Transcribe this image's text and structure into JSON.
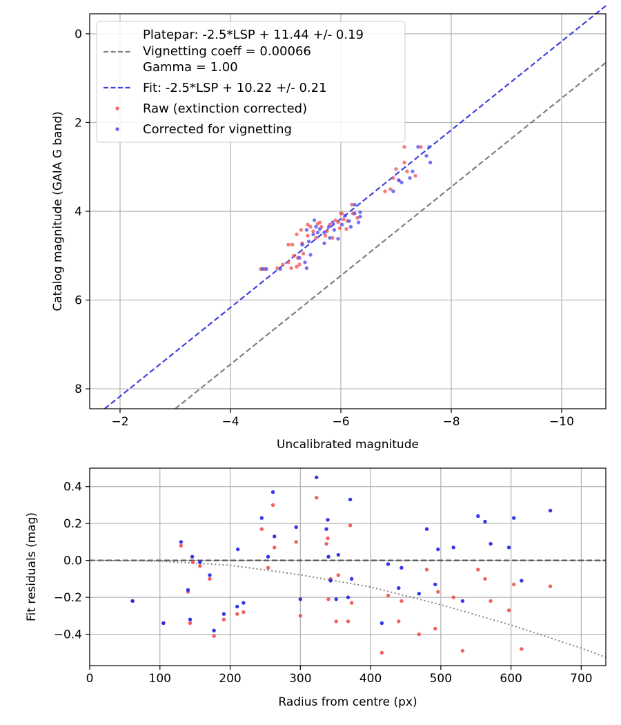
{
  "chart_data": [
    {
      "type": "scatter",
      "xlabel": "Uncalibrated magnitude",
      "ylabel": "Catalog magnitude (GAIA G band)",
      "xlim": [
        -1.45,
        -10.8
      ],
      "ylim": [
        8.45,
        -0.45
      ],
      "x_inverted": true,
      "y_inverted": true,
      "xticks": [
        -2,
        -4,
        -6,
        -8,
        -10
      ],
      "xtick_labels": [
        "−2",
        "−4",
        "−6",
        "−8",
        "−10"
      ],
      "yticks": [
        0,
        2,
        4,
        6,
        8
      ],
      "ytick_labels": [
        "0",
        "2",
        "4",
        "6",
        "8"
      ],
      "grid": true,
      "legend": {
        "placement": "upper-left",
        "entries": [
          {
            "label": "Platepar: -2.5*LSP + 11.44 +/- 0.19",
            "style": "none"
          },
          {
            "label": "Vignetting coeff = 0.00066",
            "style": "dashed",
            "color": "#7f7f7f"
          },
          {
            "label": "Gamma = 1.00",
            "style": "none"
          },
          {
            "label": "Fit: -2.5*LSP + 10.22 +/- 0.21",
            "style": "dashed",
            "color": "#4040e0"
          },
          {
            "label": "Raw (extinction corrected)",
            "style": "dot",
            "color": "#f05050"
          },
          {
            "label": "Corrected for vignetting",
            "style": "dot",
            "color": "#4848f0"
          }
        ]
      },
      "lines": [
        {
          "name": "Platepar",
          "color": "#7f7f7f",
          "dash": true,
          "points": [
            [
              -3.0,
              8.45
            ],
            [
              -10.8,
              0.65
            ]
          ]
        },
        {
          "name": "Fit",
          "color": "#4040e0",
          "dash": true,
          "points": [
            [
              -1.72,
              8.45
            ],
            [
              -10.8,
              -0.63
            ]
          ]
        }
      ],
      "series": [
        {
          "name": "Raw (extinction corrected)",
          "color": "#f05050",
          "points": [
            [
              -4.55,
              5.3
            ],
            [
              -4.62,
              5.3
            ],
            [
              -4.85,
              5.28
            ],
            [
              -4.95,
              5.2
            ],
            [
              -5.05,
              5.15
            ],
            [
              -5.1,
              5.28
            ],
            [
              -5.2,
              5.25
            ],
            [
              -5.15,
              5.0
            ],
            [
              -5.22,
              5.05
            ],
            [
              -5.32,
              4.95
            ],
            [
              -5.12,
              4.75
            ],
            [
              -5.2,
              4.52
            ],
            [
              -5.3,
              4.72
            ],
            [
              -5.28,
              4.42
            ],
            [
              -5.4,
              4.55
            ],
            [
              -5.45,
              4.35
            ],
            [
              -5.5,
              4.45
            ],
            [
              -5.58,
              4.28
            ],
            [
              -5.65,
              4.35
            ],
            [
              -5.72,
              4.55
            ],
            [
              -5.8,
              4.3
            ],
            [
              -5.85,
              4.6
            ],
            [
              -5.9,
              4.2
            ],
            [
              -5.95,
              4.25
            ],
            [
              -6.0,
              4.05
            ],
            [
              -6.05,
              4.18
            ],
            [
              -6.1,
              4.4
            ],
            [
              -6.12,
              4.22
            ],
            [
              -6.2,
              3.85
            ],
            [
              -6.22,
              4.05
            ],
            [
              -6.3,
              4.15
            ],
            [
              -6.8,
              3.55
            ],
            [
              -6.9,
              3.5
            ],
            [
              -6.95,
              3.25
            ],
            [
              -7.0,
              3.05
            ],
            [
              -7.05,
              3.3
            ],
            [
              -7.15,
              2.9
            ],
            [
              -7.2,
              3.1
            ],
            [
              -7.15,
              2.55
            ],
            [
              -7.35,
              3.2
            ],
            [
              -7.45,
              2.55
            ],
            [
              -5.05,
              4.75
            ],
            [
              -5.55,
              4.6
            ],
            [
              -5.62,
              4.25
            ],
            [
              -5.4,
              4.3
            ],
            [
              -5.75,
              4.45
            ],
            [
              -6.02,
              4.05
            ],
            [
              -5.98,
              4.38
            ],
            [
              -5.25,
              5.2
            ]
          ]
        },
        {
          "name": "Corrected for vignetting",
          "color": "#4848f0",
          "points": [
            [
              -4.58,
              5.3
            ],
            [
              -4.65,
              5.3
            ],
            [
              -4.9,
              5.3
            ],
            [
              -5.25,
              5.05
            ],
            [
              -5.38,
              5.28
            ],
            [
              -5.35,
              5.15
            ],
            [
              -5.45,
              4.98
            ],
            [
              -5.3,
              4.75
            ],
            [
              -5.42,
              4.68
            ],
            [
              -5.38,
              4.42
            ],
            [
              -5.5,
              4.52
            ],
            [
              -5.55,
              4.35
            ],
            [
              -5.62,
              4.4
            ],
            [
              -5.7,
              4.48
            ],
            [
              -5.78,
              4.35
            ],
            [
              -5.85,
              4.25
            ],
            [
              -5.88,
              4.42
            ],
            [
              -5.95,
              4.62
            ],
            [
              -6.02,
              4.3
            ],
            [
              -6.08,
              4.1
            ],
            [
              -6.15,
              4.22
            ],
            [
              -6.18,
              4.35
            ],
            [
              -6.25,
              4.05
            ],
            [
              -6.35,
              4.02
            ],
            [
              -6.35,
              4.12
            ],
            [
              -6.32,
              4.25
            ],
            [
              -6.25,
              3.85
            ],
            [
              -6.95,
              3.55
            ],
            [
              -7.05,
              3.3
            ],
            [
              -7.1,
              3.35
            ],
            [
              -7.25,
              3.25
            ],
            [
              -7.3,
              3.1
            ],
            [
              -7.4,
              2.55
            ],
            [
              -7.55,
              2.75
            ],
            [
              -7.6,
              2.55
            ],
            [
              -7.62,
              2.9
            ],
            [
              -5.7,
              4.72
            ],
            [
              -5.8,
              4.6
            ],
            [
              -5.58,
              4.48
            ],
            [
              -5.52,
              4.2
            ]
          ]
        }
      ]
    },
    {
      "type": "scatter",
      "xlabel": "Radius from centre (px)",
      "ylabel": "Fit residuals (mag)",
      "xlim": [
        0,
        735
      ],
      "ylim": [
        -0.57,
        0.5
      ],
      "xticks": [
        0,
        100,
        200,
        300,
        400,
        500,
        600,
        700
      ],
      "xtick_labels": [
        "0",
        "100",
        "200",
        "300",
        "400",
        "500",
        "600",
        "700"
      ],
      "yticks": [
        0.4,
        0.2,
        0.0,
        -0.2,
        -0.4
      ],
      "ytick_labels": [
        "0.4",
        "0.2",
        "0.0",
        "−0.2",
        "−0.4"
      ],
      "grid": true,
      "lines": [
        {
          "name": "zero",
          "color": "#555555",
          "dash": true,
          "points": [
            [
              0,
              0.0
            ],
            [
              735,
              0.0
            ]
          ]
        },
        {
          "name": "vignetting model",
          "color": "#808080",
          "dotted": true,
          "points": [
            [
              0,
              0.0
            ],
            [
              100,
              -0.004
            ],
            [
              200,
              -0.026
            ],
            [
              300,
              -0.078
            ],
            [
              400,
              -0.144
            ],
            [
              500,
              -0.24
            ],
            [
              600,
              -0.35
            ],
            [
              700,
              -0.475
            ],
            [
              735,
              -0.525
            ]
          ]
        }
      ],
      "series": [
        {
          "name": "Raw (extinction corrected)",
          "color": "#f05050",
          "points": [
            [
              61,
              -0.22
            ],
            [
              105,
              -0.34
            ],
            [
              130,
              0.08
            ],
            [
              140,
              -0.17
            ],
            [
              143,
              -0.34
            ],
            [
              147,
              -0.01
            ],
            [
              157,
              -0.03
            ],
            [
              171,
              -0.1
            ],
            [
              177,
              -0.41
            ],
            [
              191,
              -0.32
            ],
            [
              210,
              -0.29
            ],
            [
              219,
              -0.28
            ],
            [
              245,
              0.17
            ],
            [
              254,
              -0.04
            ],
            [
              261,
              0.3
            ],
            [
              263,
              0.07
            ],
            [
              294,
              0.1
            ],
            [
              300,
              -0.3
            ],
            [
              323,
              0.34
            ],
            [
              337,
              0.09
            ],
            [
              339,
              0.12
            ],
            [
              340,
              -0.21
            ],
            [
              343,
              -0.1
            ],
            [
              351,
              -0.33
            ],
            [
              354,
              -0.08
            ],
            [
              368,
              -0.33
            ],
            [
              371,
              0.19
            ],
            [
              373,
              -0.23
            ],
            [
              416,
              -0.5
            ],
            [
              425,
              -0.19
            ],
            [
              440,
              -0.33
            ],
            [
              444,
              -0.22
            ],
            [
              469,
              -0.4
            ],
            [
              480,
              -0.05
            ],
            [
              492,
              -0.37
            ],
            [
              496,
              -0.17
            ],
            [
              518,
              -0.2
            ],
            [
              531,
              -0.49
            ],
            [
              553,
              -0.05
            ],
            [
              563,
              -0.1
            ],
            [
              571,
              -0.22
            ],
            [
              597,
              -0.27
            ],
            [
              604,
              -0.13
            ],
            [
              615,
              -0.48
            ],
            [
              656,
              -0.14
            ]
          ]
        },
        {
          "name": "Corrected for vignetting",
          "color": "#2020e8",
          "points": [
            [
              61,
              -0.22
            ],
            [
              105,
              -0.34
            ],
            [
              130,
              0.1
            ],
            [
              140,
              -0.16
            ],
            [
              143,
              -0.32
            ],
            [
              146,
              0.02
            ],
            [
              157,
              -0.01
            ],
            [
              171,
              -0.08
            ],
            [
              177,
              -0.38
            ],
            [
              191,
              -0.29
            ],
            [
              211,
              0.06
            ],
            [
              210,
              -0.25
            ],
            [
              219,
              -0.23
            ],
            [
              245,
              0.23
            ],
            [
              254,
              0.02
            ],
            [
              261,
              0.37
            ],
            [
              263,
              0.13
            ],
            [
              294,
              0.18
            ],
            [
              300,
              -0.21
            ],
            [
              323,
              0.45
            ],
            [
              337,
              0.17
            ],
            [
              339,
              0.22
            ],
            [
              340,
              0.02
            ],
            [
              343,
              -0.11
            ],
            [
              351,
              -0.21
            ],
            [
              354,
              0.03
            ],
            [
              368,
              -0.2
            ],
            [
              371,
              0.33
            ],
            [
              373,
              -0.1
            ],
            [
              416,
              -0.34
            ],
            [
              425,
              -0.02
            ],
            [
              440,
              -0.15
            ],
            [
              444,
              -0.04
            ],
            [
              469,
              -0.18
            ],
            [
              480,
              0.17
            ],
            [
              492,
              -0.13
            ],
            [
              496,
              0.06
            ],
            [
              518,
              0.07
            ],
            [
              531,
              -0.22
            ],
            [
              553,
              0.24
            ],
            [
              563,
              0.21
            ],
            [
              571,
              0.09
            ],
            [
              597,
              0.07
            ],
            [
              604,
              0.23
            ],
            [
              615,
              -0.11
            ],
            [
              656,
              0.27
            ]
          ]
        }
      ]
    }
  ]
}
